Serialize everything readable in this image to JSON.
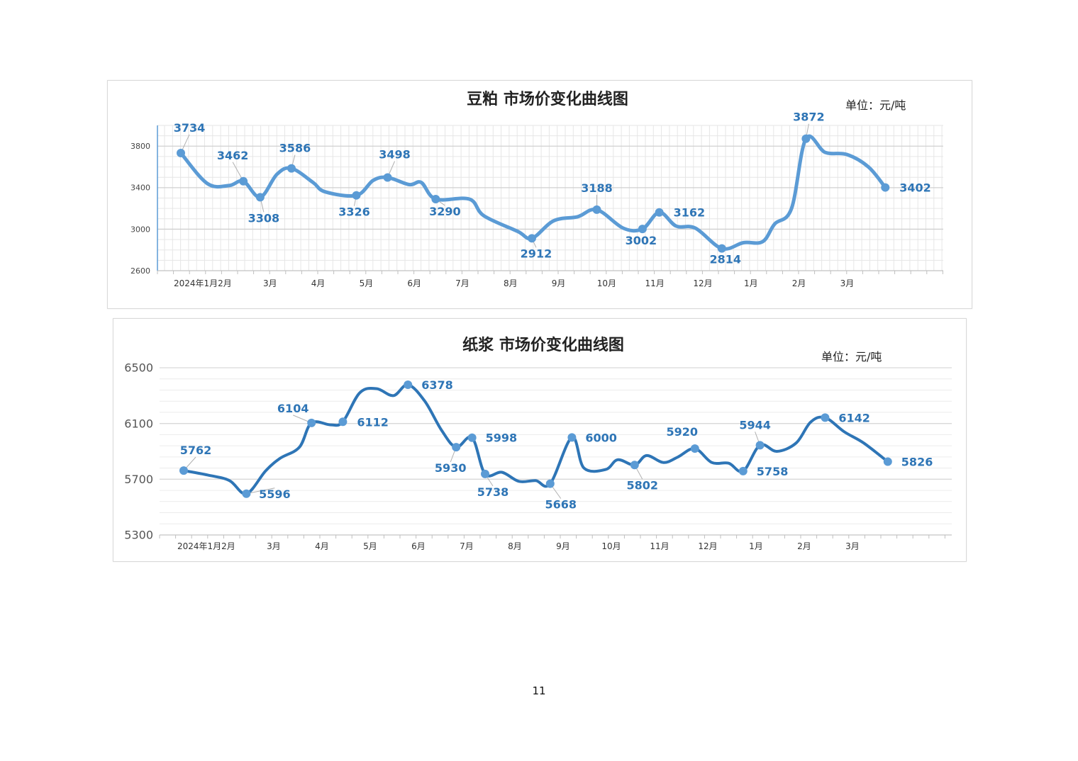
{
  "page_number": "11",
  "chart_data": [
    {
      "type": "line",
      "title": "豆粕 市场价变化曲线图",
      "unit": "单位：元/吨",
      "ylim": [
        2600,
        4000
      ],
      "y_ticks": [
        2600,
        3000,
        3400,
        3800
      ],
      "grid": true,
      "x_tick_labels": [
        "2024年1月",
        "2月",
        "3月",
        "4月",
        "5月",
        "6月",
        "7月",
        "8月",
        "9月",
        "10月",
        "11月",
        "12月",
        "1月",
        "2月",
        "3月"
      ],
      "series": [
        {
          "color": "#5b9bd5",
          "points": [
            {
              "x": 0.0,
              "y": 3734,
              "label": "3734"
            },
            {
              "x": 0.55,
              "y": 3440
            },
            {
              "x": 1.0,
              "y": 3420
            },
            {
              "x": 1.3,
              "y": 3462,
              "label": "3462"
            },
            {
              "x": 1.65,
              "y": 3308,
              "label": "3308"
            },
            {
              "x": 2.0,
              "y": 3530
            },
            {
              "x": 2.3,
              "y": 3586,
              "label": "3586"
            },
            {
              "x": 2.75,
              "y": 3450
            },
            {
              "x": 3.0,
              "y": 3360
            },
            {
              "x": 3.65,
              "y": 3326,
              "label": "3326"
            },
            {
              "x": 4.0,
              "y": 3470
            },
            {
              "x": 4.3,
              "y": 3498,
              "label": "3498"
            },
            {
              "x": 4.75,
              "y": 3430
            },
            {
              "x": 5.0,
              "y": 3450
            },
            {
              "x": 5.3,
              "y": 3290,
              "label": "3290"
            },
            {
              "x": 6.0,
              "y": 3290
            },
            {
              "x": 6.3,
              "y": 3130
            },
            {
              "x": 7.0,
              "y": 2980
            },
            {
              "x": 7.3,
              "y": 2912,
              "label": "2912"
            },
            {
              "x": 7.75,
              "y": 3080
            },
            {
              "x": 8.25,
              "y": 3120
            },
            {
              "x": 8.65,
              "y": 3188,
              "label": "3188"
            },
            {
              "x": 9.2,
              "y": 3010
            },
            {
              "x": 9.6,
              "y": 3002,
              "label": "3002"
            },
            {
              "x": 9.95,
              "y": 3162,
              "label": "3162"
            },
            {
              "x": 10.3,
              "y": 3030
            },
            {
              "x": 10.7,
              "y": 3010
            },
            {
              "x": 11.25,
              "y": 2814,
              "label": "2814"
            },
            {
              "x": 11.7,
              "y": 2870
            },
            {
              "x": 12.1,
              "y": 2880
            },
            {
              "x": 12.35,
              "y": 3050
            },
            {
              "x": 12.7,
              "y": 3200
            },
            {
              "x": 13.0,
              "y": 3872,
              "label": "3872"
            },
            {
              "x": 13.4,
              "y": 3740
            },
            {
              "x": 13.85,
              "y": 3720
            },
            {
              "x": 14.3,
              "y": 3600
            },
            {
              "x": 14.65,
              "y": 3402,
              "label": "3402"
            }
          ]
        }
      ]
    },
    {
      "type": "line",
      "title": "纸浆 市场价变化曲线图",
      "unit": "单位：元/吨",
      "ylim": [
        5300,
        6500
      ],
      "y_ticks": [
        5300,
        5700,
        6100,
        6500
      ],
      "grid": true,
      "x_tick_labels": [
        "2024年1月",
        "2月",
        "3月",
        "4月",
        "5月",
        "6月",
        "7月",
        "8月",
        "9月",
        "10月",
        "11月",
        "12月",
        "1月",
        "2月",
        "3月"
      ],
      "series": [
        {
          "color": "#2e75b6",
          "points": [
            {
              "x": 0.0,
              "y": 5762,
              "label": "5762"
            },
            {
              "x": 0.5,
              "y": 5730
            },
            {
              "x": 0.95,
              "y": 5690
            },
            {
              "x": 1.3,
              "y": 5596,
              "label": "5596"
            },
            {
              "x": 1.7,
              "y": 5760
            },
            {
              "x": 2.0,
              "y": 5850
            },
            {
              "x": 2.4,
              "y": 5930
            },
            {
              "x": 2.65,
              "y": 6104,
              "label": "6104"
            },
            {
              "x": 3.05,
              "y": 6090
            },
            {
              "x": 3.3,
              "y": 6112,
              "label": "6112"
            },
            {
              "x": 3.65,
              "y": 6320
            },
            {
              "x": 4.0,
              "y": 6350
            },
            {
              "x": 4.35,
              "y": 6300
            },
            {
              "x": 4.65,
              "y": 6378,
              "label": "6378"
            },
            {
              "x": 5.0,
              "y": 6260
            },
            {
              "x": 5.35,
              "y": 6050
            },
            {
              "x": 5.65,
              "y": 5930,
              "label": "5930"
            },
            {
              "x": 5.98,
              "y": 5998,
              "label": "5998"
            },
            {
              "x": 6.25,
              "y": 5738,
              "label": "5738"
            },
            {
              "x": 6.6,
              "y": 5750
            },
            {
              "x": 6.95,
              "y": 5685
            },
            {
              "x": 7.3,
              "y": 5690
            },
            {
              "x": 7.6,
              "y": 5668,
              "label": "5668"
            },
            {
              "x": 8.05,
              "y": 6000,
              "label": "6000"
            },
            {
              "x": 8.3,
              "y": 5780
            },
            {
              "x": 8.75,
              "y": 5770
            },
            {
              "x": 9.0,
              "y": 5840
            },
            {
              "x": 9.35,
              "y": 5802,
              "label": "5802"
            },
            {
              "x": 9.6,
              "y": 5870
            },
            {
              "x": 9.95,
              "y": 5820
            },
            {
              "x": 10.25,
              "y": 5860
            },
            {
              "x": 10.6,
              "y": 5920,
              "label": "5920"
            },
            {
              "x": 10.95,
              "y": 5820
            },
            {
              "x": 11.3,
              "y": 5815
            },
            {
              "x": 11.6,
              "y": 5758,
              "label": "5758"
            },
            {
              "x": 11.95,
              "y": 5944,
              "label": "5944"
            },
            {
              "x": 12.3,
              "y": 5900
            },
            {
              "x": 12.7,
              "y": 5960
            },
            {
              "x": 13.0,
              "y": 6110
            },
            {
              "x": 13.3,
              "y": 6142,
              "label": "6142"
            },
            {
              "x": 13.7,
              "y": 6040
            },
            {
              "x": 14.1,
              "y": 5960
            },
            {
              "x": 14.6,
              "y": 5826,
              "label": "5826"
            }
          ]
        }
      ]
    }
  ]
}
